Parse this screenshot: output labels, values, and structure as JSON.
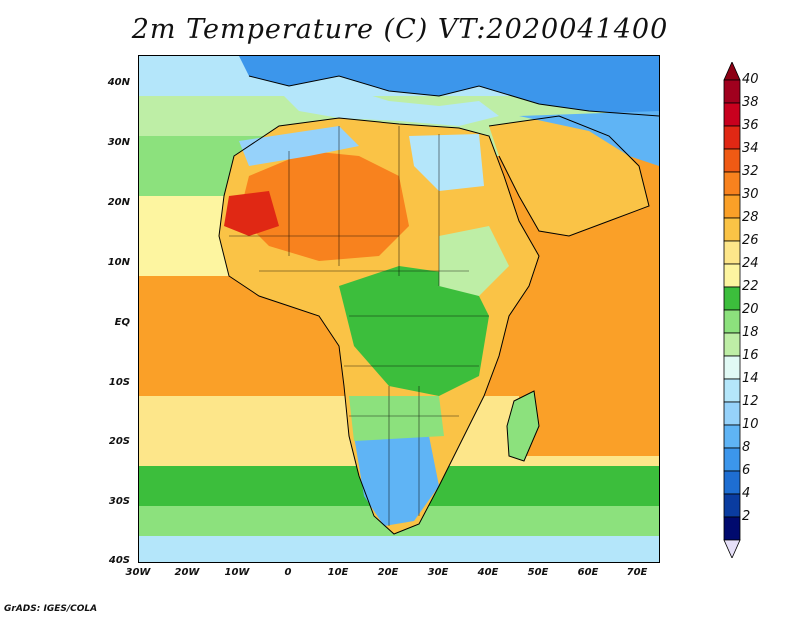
{
  "title": "2m Temperature (C) VT:2020041400",
  "footer": "GrADS: IGES/COLA",
  "map": {
    "lat_labels": [
      "40N",
      "30N",
      "20N",
      "10N",
      "EQ",
      "10S",
      "20S",
      "30S",
      "40S"
    ],
    "lon_labels": [
      "30W",
      "20W",
      "10W",
      "0",
      "10E",
      "20E",
      "30E",
      "40E",
      "50E",
      "60E",
      "70E"
    ],
    "variable": "2m temperature",
    "units": "C",
    "valid_time": "2020041400"
  },
  "colorbar": {
    "labels": [
      "40",
      "38",
      "36",
      "34",
      "32",
      "30",
      "28",
      "26",
      "24",
      "22",
      "20",
      "18",
      "16",
      "14",
      "12",
      "10",
      "8",
      "6",
      "4",
      "2"
    ],
    "colors": [
      "#a0001e",
      "#c8001e",
      "#e02814",
      "#f05a14",
      "#f8821e",
      "#faa028",
      "#fac346",
      "#fde68a",
      "#fdf5a0",
      "#3cbe3c",
      "#8ce17d",
      "#beeea6",
      "#e1faf5",
      "#b4e6fa",
      "#96d2fa",
      "#5fb4f5",
      "#3c96eb",
      "#1e6ed2",
      "#0a3ca0",
      "#000a6e"
    ],
    "top_triangle_color": "#8c0014",
    "bottom_triangle_color": "#e6e0f8"
  }
}
